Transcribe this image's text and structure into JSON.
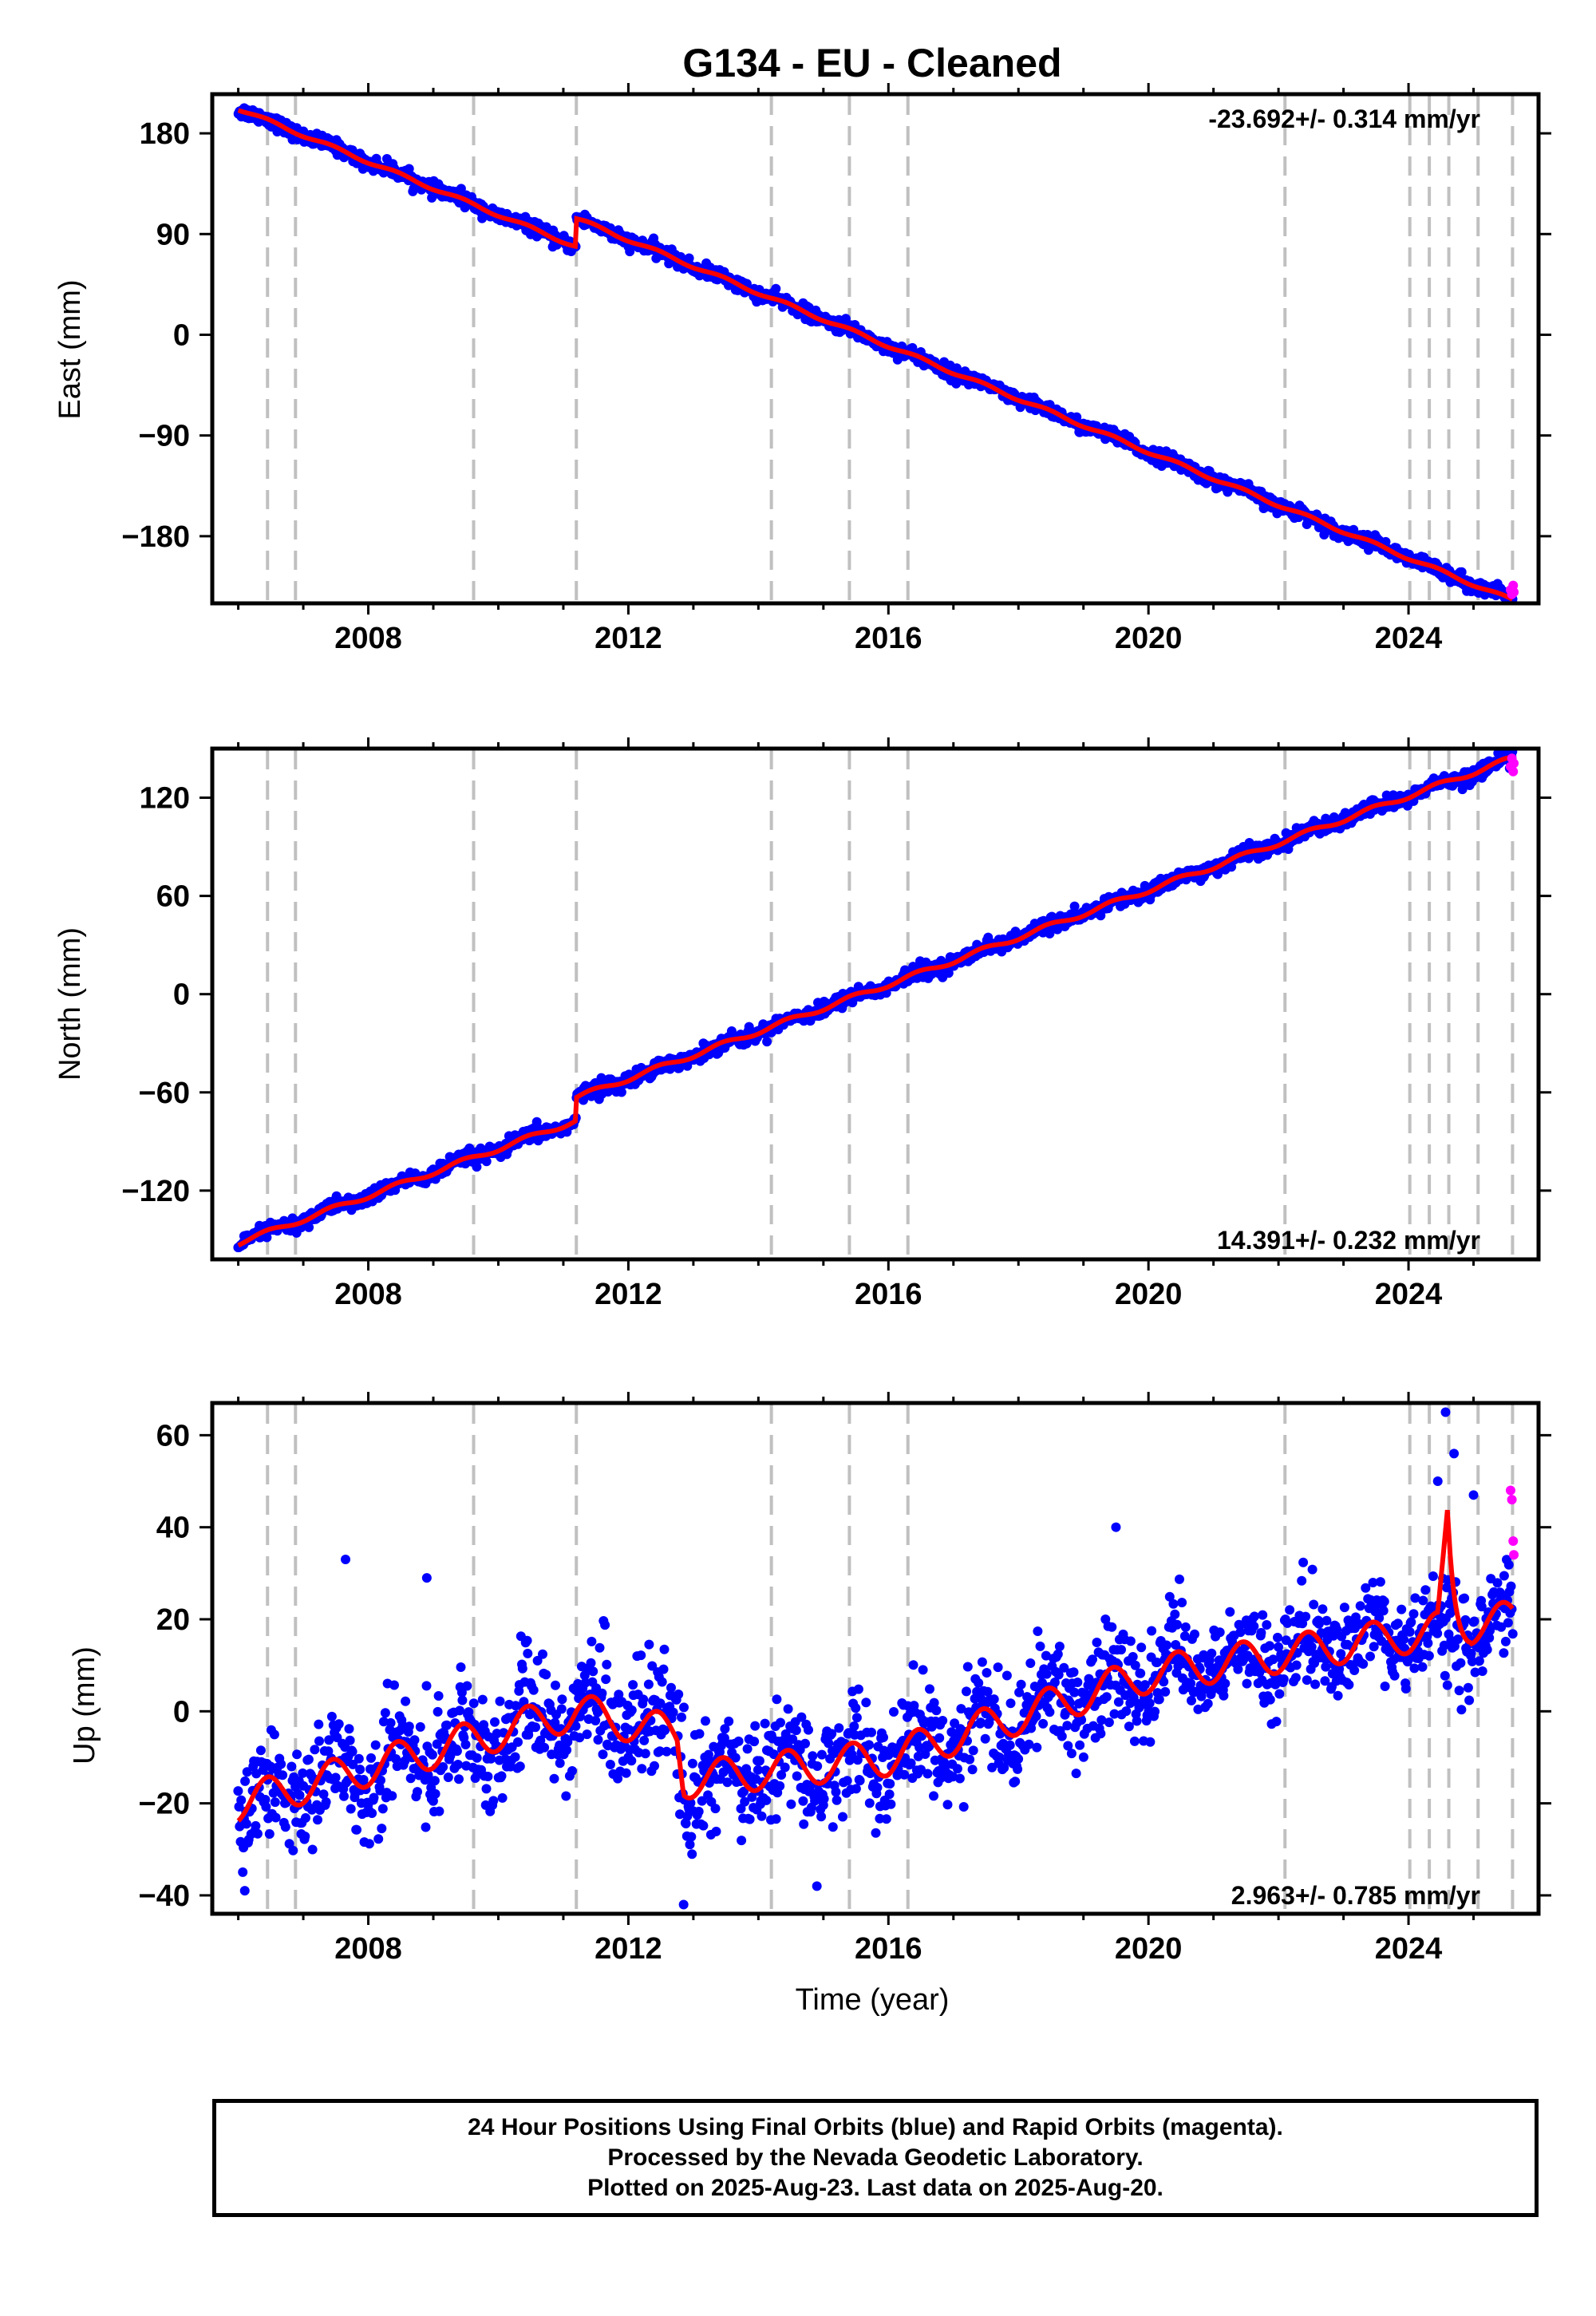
{
  "colors": {
    "final_points": "#0000ff",
    "rapid_points": "#ff00ff",
    "model": "#ff0000",
    "event_lines": "#c0c0c0",
    "axis": "#000000"
  },
  "figure_title": "G134  - EU - Cleaned",
  "xlabel": "Time (year)",
  "event_lines_year": [
    2006.45,
    2006.88,
    2009.62,
    2011.2,
    2014.2,
    2015.4,
    2016.3,
    2022.1,
    2024.02,
    2024.32,
    2024.62,
    2025.07,
    2025.6
  ],
  "footer": {
    "line1": "24 Hour Positions Using Final Orbits (blue) and Rapid Orbits (magenta).",
    "line2": "Processed by the Nevada Geodetic Laboratory.",
    "line3": "Plotted on 2025-Aug-23. Last data on 2025-Aug-20."
  },
  "chart_data": [
    {
      "type": "scatter",
      "component": "east",
      "title": "G134  - EU - Cleaned",
      "ylabel": "East (mm)",
      "xlabel": "",
      "xlim": [
        2005.6,
        2026.0
      ],
      "ylim": [
        -240,
        215
      ],
      "xticks": [
        2008,
        2012,
        2016,
        2020,
        2024
      ],
      "xtick_labels": [
        "2008",
        "2012",
        "2016",
        "2020",
        "2024"
      ],
      "yticks": [
        180,
        90,
        0,
        -90,
        -180
      ],
      "ytick_labels": [
        "180",
        "90",
        "0",
        "−90",
        "−180"
      ],
      "rate_text": "-23.692+/- 0.314 mm/yr",
      "rate_position": "top-right",
      "series": [
        {
          "name": "Final Orbits (blue)",
          "x_range": [
            2006.0,
            2025.6
          ],
          "start": 202,
          "rate": -23.692,
          "noise": 3.0,
          "annual_amplitude": 1.5,
          "offsets": [
            {
              "year": 2011.2,
              "value": 25
            }
          ],
          "outliers": []
        },
        {
          "name": "Rapid Orbits (magenta)",
          "x": [
            2025.57,
            2025.59,
            2025.61,
            2025.62
          ],
          "y": [
            -228,
            -232,
            -224,
            -230
          ]
        }
      ],
      "model": {
        "rate": -23.692,
        "start": 202,
        "annual_amplitude": 1.5,
        "offsets": [
          {
            "year": 2011.2,
            "value": 25
          }
        ]
      }
    },
    {
      "type": "scatter",
      "component": "north",
      "ylabel": "North (mm)",
      "xlabel": "",
      "xlim": [
        2005.6,
        2026.0
      ],
      "ylim": [
        -162,
        150
      ],
      "xticks": [
        2008,
        2012,
        2016,
        2020,
        2024
      ],
      "xtick_labels": [
        "2008",
        "2012",
        "2016",
        "2020",
        "2024"
      ],
      "yticks": [
        120,
        60,
        0,
        -60,
        -120
      ],
      "ytick_labels": [
        "120",
        "60",
        "0",
        "−60",
        "−120"
      ],
      "rate_text": "14.391+/- 0.232 mm/yr",
      "rate_position": "bottom-right",
      "series": [
        {
          "name": "Final Orbits (blue)",
          "x_range": [
            2006.0,
            2025.6
          ],
          "start": -152,
          "rate": 14.391,
          "noise": 2.2,
          "annual_amplitude": 1.5,
          "offsets": [
            {
              "year": 2011.2,
              "value": 14
            }
          ],
          "outliers": []
        },
        {
          "name": "Rapid Orbits (magenta)",
          "x": [
            2025.57,
            2025.59,
            2025.61,
            2025.62
          ],
          "y": [
            139,
            144,
            136,
            141
          ]
        }
      ],
      "model": {
        "rate": 14.391,
        "start": -152,
        "annual_amplitude": 1.5,
        "offsets": [
          {
            "year": 2011.2,
            "value": 14
          }
        ]
      }
    },
    {
      "type": "scatter",
      "component": "up",
      "ylabel": "Up (mm)",
      "xlabel": "Time (year)",
      "xlim": [
        2005.6,
        2026.0
      ],
      "ylim": [
        -44,
        67
      ],
      "xticks": [
        2008,
        2012,
        2016,
        2020,
        2024
      ],
      "xtick_labels": [
        "2008",
        "2012",
        "2016",
        "2020",
        "2024"
      ],
      "yticks": [
        60,
        40,
        20,
        0,
        -20,
        -40
      ],
      "ytick_labels": [
        "60",
        "40",
        "20",
        "0",
        "−20",
        "−40"
      ],
      "rate_text": "2.963+/- 0.785 mm/yr",
      "rate_position": "bottom-right",
      "series": [
        {
          "name": "Final Orbits (blue)",
          "x_range": [
            2006.0,
            2025.6
          ],
          "noise": 5.5,
          "annual_amplitude": 4,
          "trend": [
            [
              2006.0,
              -20
            ],
            [
              2011.2,
              0
            ],
            [
              2012.75,
              -5
            ],
            [
              2012.85,
              -15
            ],
            [
              2016.0,
              -10
            ],
            [
              2020.0,
              8
            ],
            [
              2025.6,
              20
            ]
          ],
          "outliers": [
            [
              2007.65,
              33
            ],
            [
              2012.85,
              -42
            ],
            [
              2014.9,
              -38
            ],
            [
              2019.5,
              40
            ],
            [
              2024.57,
              65
            ],
            [
              2024.7,
              56
            ],
            [
              2025.0,
              47
            ],
            [
              2024.45,
              50
            ],
            [
              2008.9,
              29
            ],
            [
              2006.1,
              -39
            ]
          ]
        },
        {
          "name": "Rapid Orbits (magenta)",
          "x": [
            2025.57,
            2025.59,
            2025.61,
            2025.62
          ],
          "y": [
            48,
            46,
            37,
            34
          ]
        }
      ],
      "model": {
        "annual_amplitude": 4,
        "trend": [
          [
            2006.0,
            -20
          ],
          [
            2011.2,
            0
          ],
          [
            2012.75,
            -5
          ],
          [
            2012.85,
            -15
          ],
          [
            2016.0,
            -10
          ],
          [
            2020.0,
            8
          ],
          [
            2025.6,
            20
          ]
        ],
        "spike": {
          "year": 2024.6,
          "value": 44
        }
      }
    }
  ]
}
